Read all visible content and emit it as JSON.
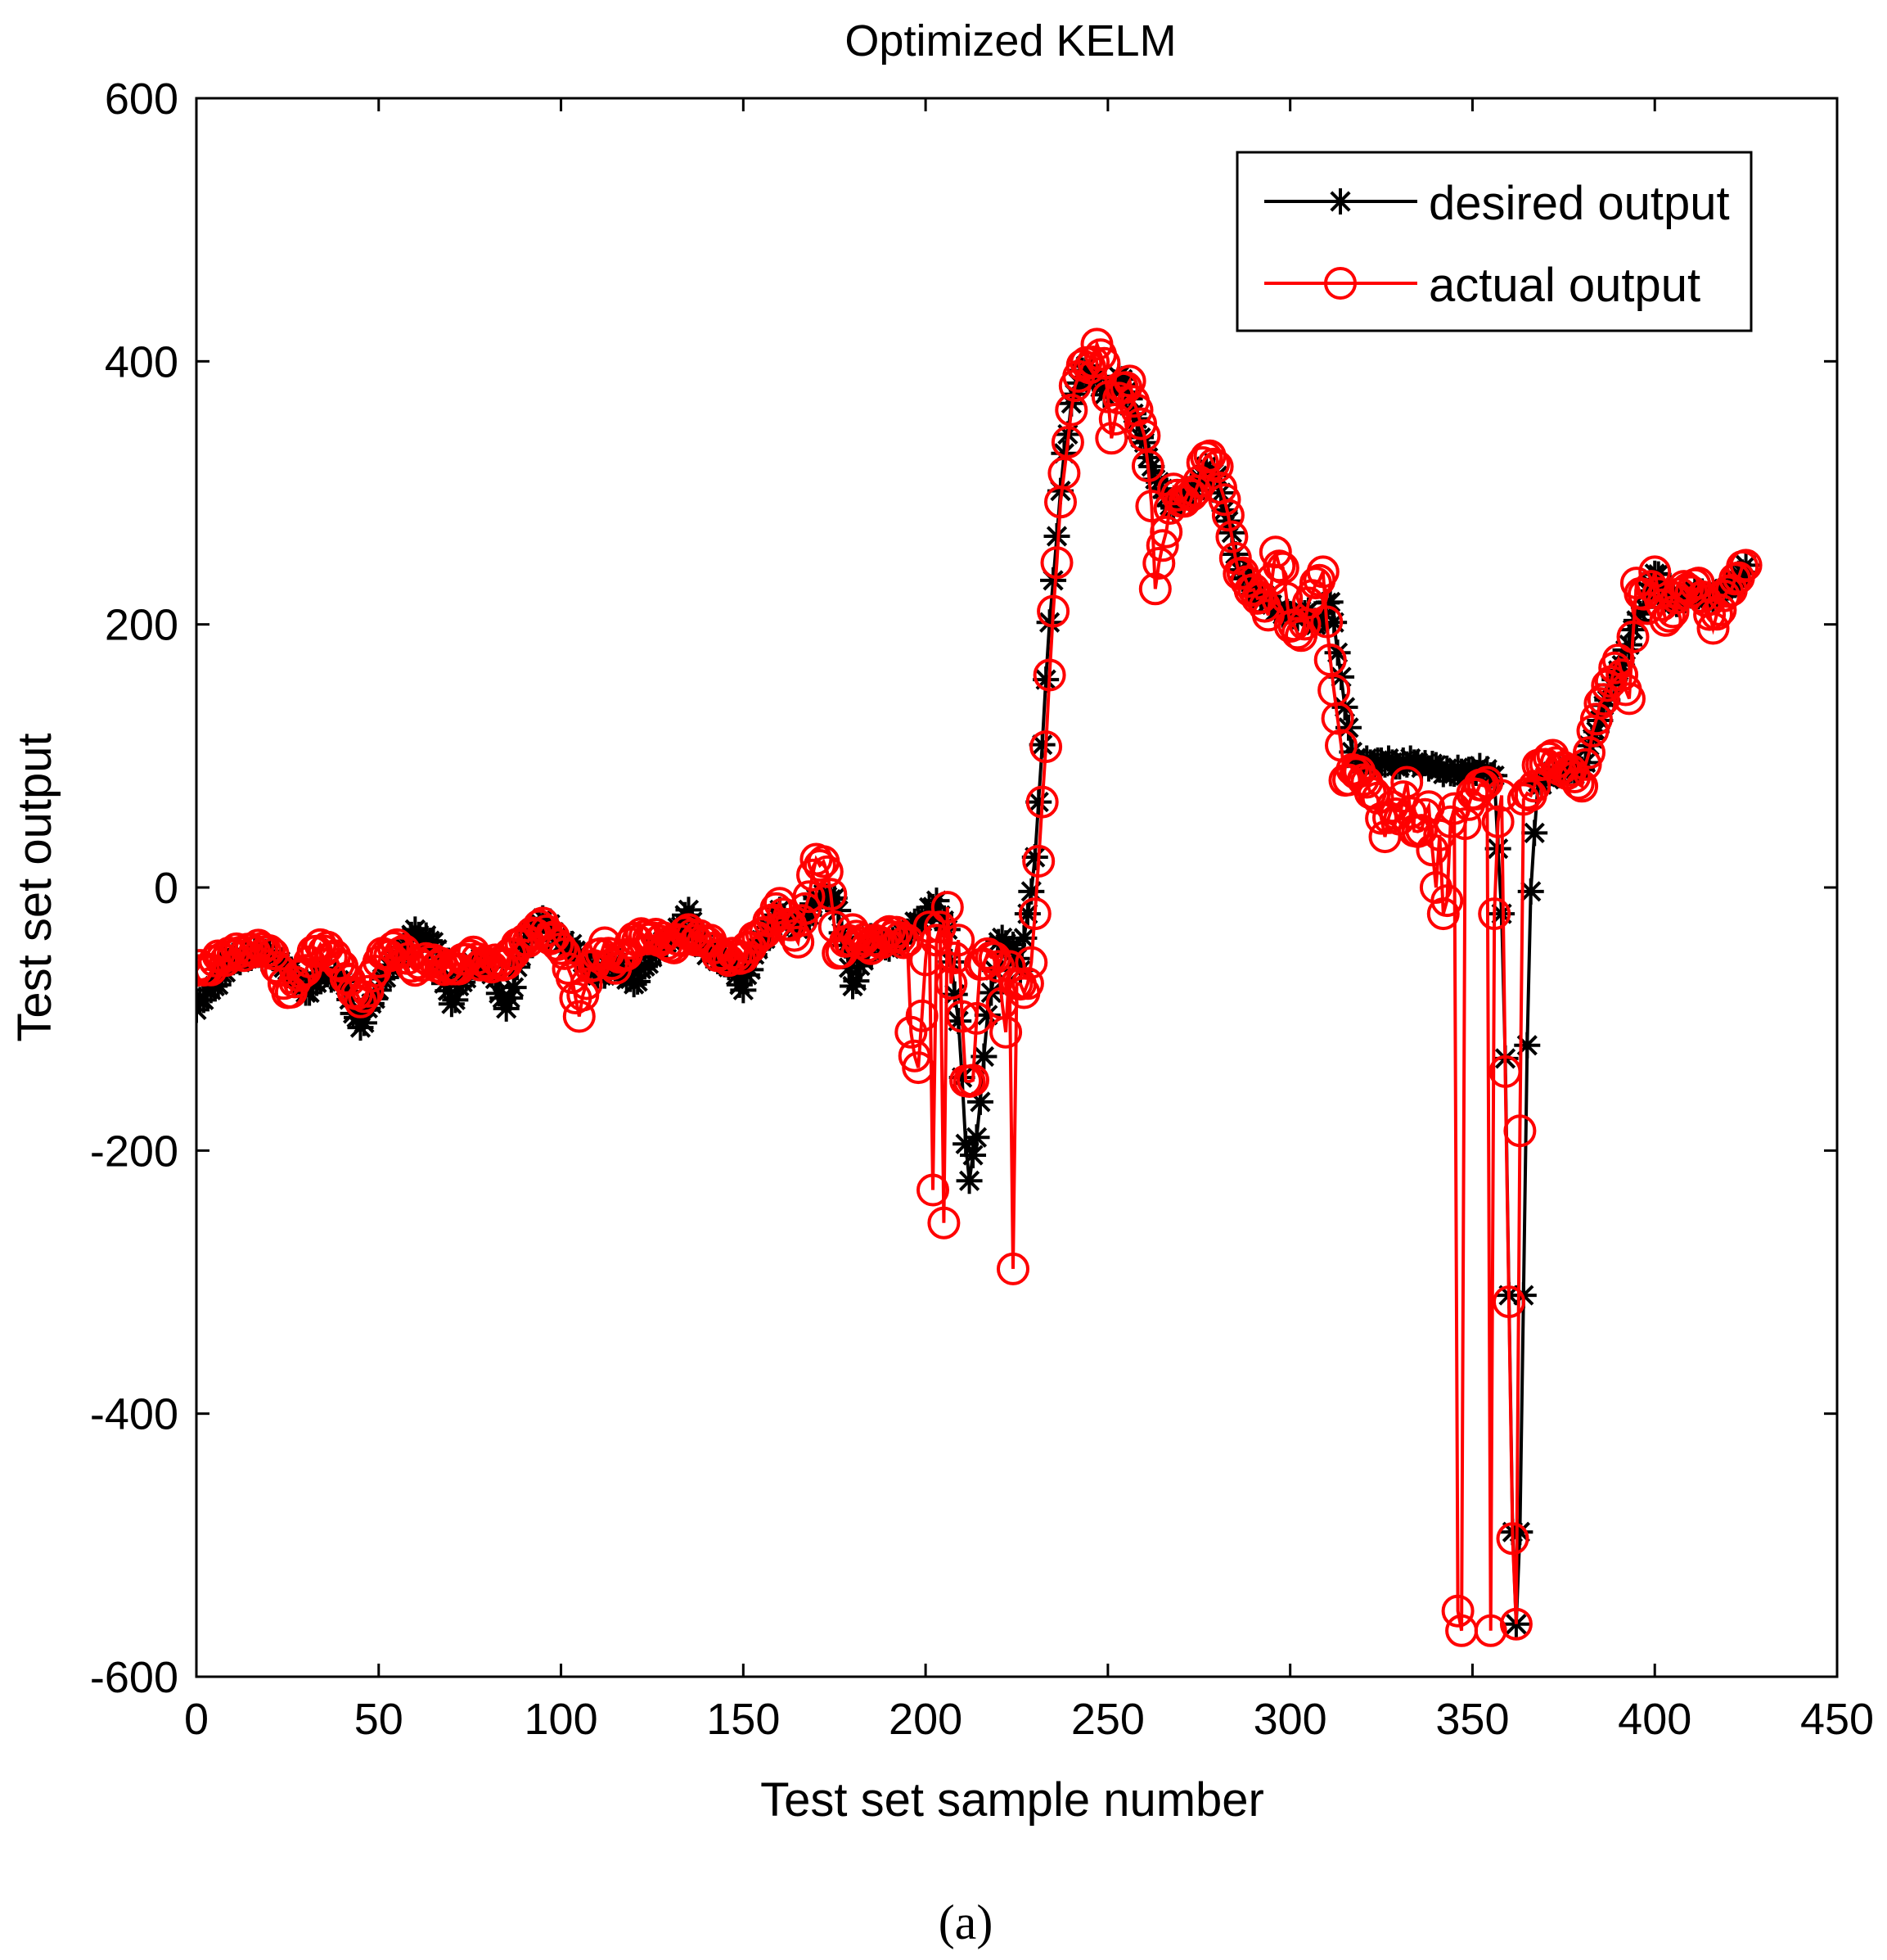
{
  "chart_data": {
    "type": "line",
    "title": "Optimized KELM",
    "xlabel": "Test set sample number",
    "ylabel": "Test set output",
    "xlim": [
      0,
      450
    ],
    "ylim": [
      -600,
      600
    ],
    "xticks": [
      0,
      50,
      100,
      150,
      200,
      250,
      300,
      350,
      400,
      450
    ],
    "yticks": [
      -600,
      -400,
      -200,
      0,
      200,
      400,
      600
    ],
    "grid": false,
    "legend_position": "top-right",
    "caption": "(a)",
    "colors": {
      "desired": "#000000",
      "actual": "#ff0000"
    },
    "anchors": {
      "desired": [
        [
          0,
          -90
        ],
        [
          5,
          -75
        ],
        [
          10,
          -55
        ],
        [
          15,
          -52
        ],
        [
          20,
          -50
        ],
        [
          25,
          -60
        ],
        [
          30,
          -80
        ],
        [
          35,
          -65
        ],
        [
          40,
          -70
        ],
        [
          45,
          -108
        ],
        [
          50,
          -75
        ],
        [
          55,
          -55
        ],
        [
          60,
          -35
        ],
        [
          65,
          -40
        ],
        [
          70,
          -90
        ],
        [
          75,
          -60
        ],
        [
          80,
          -55
        ],
        [
          85,
          -95
        ],
        [
          90,
          -40
        ],
        [
          95,
          -25
        ],
        [
          100,
          -40
        ],
        [
          105,
          -50
        ],
        [
          110,
          -70
        ],
        [
          115,
          -55
        ],
        [
          120,
          -75
        ],
        [
          125,
          -50
        ],
        [
          130,
          -40
        ],
        [
          135,
          -20
        ],
        [
          140,
          -50
        ],
        [
          145,
          -55
        ],
        [
          150,
          -75
        ],
        [
          155,
          -40
        ],
        [
          160,
          -20
        ],
        [
          165,
          -30
        ],
        [
          170,
          -10
        ],
        [
          175,
          -5
        ],
        [
          180,
          -75
        ],
        [
          185,
          -40
        ],
        [
          190,
          -45
        ],
        [
          195,
          -35
        ],
        [
          200,
          -20
        ],
        [
          203,
          -10
        ],
        [
          206,
          -35
        ],
        [
          209,
          -100
        ],
        [
          211,
          -195
        ],
        [
          212,
          -220
        ],
        [
          214,
          -190
        ],
        [
          217,
          -100
        ],
        [
          220,
          -40
        ],
        [
          224,
          -45
        ],
        [
          226,
          -60
        ],
        [
          228,
          -20
        ],
        [
          230,
          20
        ],
        [
          232,
          110
        ],
        [
          234,
          200
        ],
        [
          236,
          270
        ],
        [
          238,
          330
        ],
        [
          240,
          365
        ],
        [
          242,
          385
        ],
        [
          244,
          395
        ],
        [
          246,
          390
        ],
        [
          248,
          380
        ],
        [
          250,
          375
        ],
        [
          253,
          390
        ],
        [
          256,
          370
        ],
        [
          259,
          345
        ],
        [
          262,
          320
        ],
        [
          265,
          300
        ],
        [
          268,
          290
        ],
        [
          271,
          295
        ],
        [
          274,
          305
        ],
        [
          277,
          320
        ],
        [
          280,
          310
        ],
        [
          283,
          280
        ],
        [
          286,
          240
        ],
        [
          290,
          225
        ],
        [
          295,
          215
        ],
        [
          300,
          205
        ],
        [
          304,
          210
        ],
        [
          308,
          200
        ],
        [
          311,
          220
        ],
        [
          314,
          160
        ],
        [
          317,
          100
        ],
        [
          320,
          95
        ],
        [
          325,
          95
        ],
        [
          330,
          95
        ],
        [
          335,
          95
        ],
        [
          340,
          90
        ],
        [
          345,
          88
        ],
        [
          350,
          88
        ],
        [
          353,
          90
        ],
        [
          356,
          85
        ],
        [
          358,
          -20
        ],
        [
          359,
          -130
        ],
        [
          360,
          -310
        ],
        [
          361,
          -490
        ],
        [
          362,
          -560
        ],
        [
          363,
          -490
        ],
        [
          364,
          -310
        ],
        [
          365,
          -120
        ],
        [
          366,
          0
        ],
        [
          368,
          80
        ],
        [
          372,
          85
        ],
        [
          375,
          90
        ],
        [
          380,
          88
        ],
        [
          385,
          130
        ],
        [
          390,
          165
        ],
        [
          395,
          200
        ],
        [
          400,
          240
        ],
        [
          405,
          215
        ],
        [
          410,
          225
        ],
        [
          415,
          220
        ],
        [
          420,
          225
        ],
        [
          425,
          245
        ]
      ],
      "actual": [
        [
          0,
          -60
        ],
        [
          3,
          -62
        ],
        [
          6,
          -55
        ],
        [
          10,
          -50
        ],
        [
          15,
          -48
        ],
        [
          20,
          -45
        ],
        [
          25,
          -80
        ],
        [
          28,
          -70
        ],
        [
          31,
          -55
        ],
        [
          34,
          -45
        ],
        [
          37,
          -50
        ],
        [
          40,
          -60
        ],
        [
          45,
          -90
        ],
        [
          50,
          -55
        ],
        [
          55,
          -45
        ],
        [
          60,
          -60
        ],
        [
          65,
          -55
        ],
        [
          70,
          -65
        ],
        [
          75,
          -50
        ],
        [
          80,
          -60
        ],
        [
          85,
          -55
        ],
        [
          90,
          -40
        ],
        [
          95,
          -30
        ],
        [
          100,
          -45
        ],
        [
          103,
          -70
        ],
        [
          105,
          -95
        ],
        [
          108,
          -60
        ],
        [
          112,
          -45
        ],
        [
          115,
          -60
        ],
        [
          120,
          -40
        ],
        [
          125,
          -35
        ],
        [
          130,
          -45
        ],
        [
          135,
          -35
        ],
        [
          140,
          -40
        ],
        [
          145,
          -55
        ],
        [
          150,
          -50
        ],
        [
          155,
          -35
        ],
        [
          160,
          -15
        ],
        [
          165,
          -40
        ],
        [
          170,
          20
        ],
        [
          173,
          15
        ],
        [
          176,
          -50
        ],
        [
          180,
          -35
        ],
        [
          185,
          -45
        ],
        [
          190,
          -35
        ],
        [
          195,
          -40
        ],
        [
          196,
          -110
        ],
        [
          198,
          -140
        ],
        [
          200,
          -55
        ],
        [
          201,
          -30
        ],
        [
          202,
          -230
        ],
        [
          203,
          -40
        ],
        [
          204,
          -30
        ],
        [
          205,
          -255
        ],
        [
          206,
          -15
        ],
        [
          207,
          -70
        ],
        [
          209,
          -40
        ],
        [
          211,
          -150
        ],
        [
          213,
          -145
        ],
        [
          215,
          -60
        ],
        [
          218,
          -50
        ],
        [
          220,
          -60
        ],
        [
          222,
          -110
        ],
        [
          223,
          -60
        ],
        [
          224,
          -290
        ],
        [
          225,
          -70
        ],
        [
          227,
          -80
        ],
        [
          229,
          -60
        ],
        [
          231,
          20
        ],
        [
          232,
          65
        ],
        [
          233,
          110
        ],
        [
          235,
          210
        ],
        [
          237,
          290
        ],
        [
          239,
          340
        ],
        [
          241,
          380
        ],
        [
          243,
          400
        ],
        [
          245,
          395
        ],
        [
          247,
          410
        ],
        [
          249,
          400
        ],
        [
          251,
          340
        ],
        [
          253,
          375
        ],
        [
          256,
          385
        ],
        [
          258,
          360
        ],
        [
          260,
          345
        ],
        [
          262,
          290
        ],
        [
          263,
          230
        ],
        [
          265,
          260
        ],
        [
          268,
          300
        ],
        [
          271,
          295
        ],
        [
          274,
          300
        ],
        [
          277,
          330
        ],
        [
          280,
          320
        ],
        [
          283,
          280
        ],
        [
          286,
          240
        ],
        [
          290,
          225
        ],
        [
          294,
          210
        ],
        [
          296,
          255
        ],
        [
          298,
          240
        ],
        [
          300,
          200
        ],
        [
          303,
          190
        ],
        [
          306,
          225
        ],
        [
          309,
          240
        ],
        [
          311,
          170
        ],
        [
          313,
          130
        ],
        [
          315,
          80
        ],
        [
          318,
          90
        ],
        [
          321,
          80
        ],
        [
          324,
          65
        ],
        [
          326,
          40
        ],
        [
          328,
          60
        ],
        [
          330,
          55
        ],
        [
          332,
          80
        ],
        [
          334,
          40
        ],
        [
          336,
          45
        ],
        [
          338,
          60
        ],
        [
          340,
          0
        ],
        [
          341,
          40
        ],
        [
          342,
          -20
        ],
        [
          343,
          -10
        ],
        [
          344,
          50
        ],
        [
          345,
          60
        ],
        [
          346,
          -550
        ],
        [
          347,
          -565
        ],
        [
          348,
          50
        ],
        [
          350,
          70
        ],
        [
          354,
          80
        ],
        [
          355,
          -565
        ],
        [
          356,
          -20
        ],
        [
          357,
          50
        ],
        [
          358,
          70
        ],
        [
          359,
          -140
        ],
        [
          360,
          -315
        ],
        [
          361,
          -495
        ],
        [
          362,
          -560
        ],
        [
          363,
          -185
        ],
        [
          364,
          70
        ],
        [
          366,
          70
        ],
        [
          368,
          90
        ],
        [
          371,
          100
        ],
        [
          375,
          90
        ],
        [
          380,
          80
        ],
        [
          385,
          140
        ],
        [
          390,
          170
        ],
        [
          393,
          145
        ],
        [
          395,
          230
        ],
        [
          398,
          215
        ],
        [
          400,
          240
        ],
        [
          403,
          200
        ],
        [
          407,
          225
        ],
        [
          412,
          230
        ],
        [
          416,
          200
        ],
        [
          420,
          225
        ],
        [
          425,
          245
        ]
      ]
    },
    "series": [
      {
        "name": "desired output",
        "color": "#000000",
        "marker": "star"
      },
      {
        "name": "actual output",
        "color": "#ff0000",
        "marker": "circle"
      }
    ]
  }
}
